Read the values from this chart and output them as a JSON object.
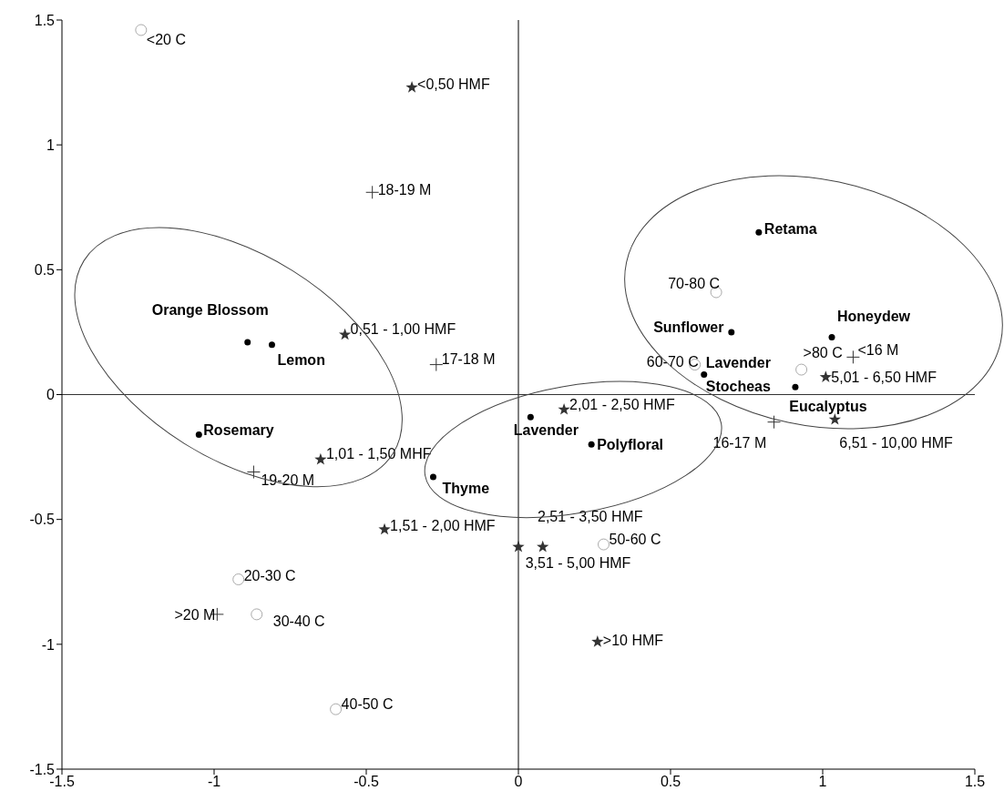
{
  "chart_data": {
    "type": "scatter",
    "xlim": [
      -1.5,
      1.5
    ],
    "xticks": [
      -1.5,
      -1,
      -0.5,
      0,
      0.5,
      1,
      1.5
    ],
    "ylim": [
      -1.5,
      1.5
    ],
    "yticks": [
      -1.5,
      -1,
      -0.5,
      0,
      0.5,
      1,
      1.5
    ],
    "ref_lines": [
      {
        "axis": "x",
        "value": 0,
        "color": "#000000"
      },
      {
        "axis": "y",
        "value": 0,
        "color": "#333333"
      }
    ],
    "series": [
      {
        "marker": "circle",
        "color": "#000000",
        "x": [
          -0.89,
          -0.81,
          -1.05,
          -0.28,
          0.04,
          0.24,
          0.79,
          0.7,
          1.03,
          0.61,
          0.91
        ],
        "values": [
          0.21,
          0.2,
          -0.16,
          -0.33,
          -0.09,
          -0.2,
          0.65,
          0.25,
          0.23,
          0.08,
          0.03
        ],
        "value_labels": [
          "Orange Blossom",
          "Lemon",
          "Rosemary",
          "Thyme",
          "Lavender",
          "Polyfloral",
          "Retama",
          "Sunflower",
          "Honeydew",
          "Lavender Stocheas",
          "Eucalyptus"
        ]
      },
      {
        "marker": "circle",
        "color": "#aaaaaa",
        "x": [
          -1.24,
          -0.92,
          -0.86,
          -0.6,
          0.28,
          0.58,
          0.65,
          0.93
        ],
        "values": [
          1.46,
          -0.74,
          -0.88,
          -1.26,
          -0.6,
          0.12,
          0.41,
          0.1
        ],
        "value_labels": [
          "<20 C",
          "20-30 C",
          "30-40 C",
          "40-50 C",
          "50-60 C",
          "60-70 C",
          "70-80 C",
          ">80 C"
        ]
      },
      {
        "marker": "cross",
        "color": "#333333",
        "x": [
          -0.48,
          -0.27,
          -0.87,
          -0.99,
          0.84,
          1.1
        ],
        "values": [
          0.81,
          0.12,
          -0.31,
          -0.88,
          -0.11,
          0.15
        ],
        "value_labels": [
          "18-19 M",
          "17-18 M",
          "19-20 M",
          ">20 M",
          "16-17 M",
          "<16 M"
        ]
      },
      {
        "marker": "star",
        "color": "#333333",
        "x": [
          -0.35,
          -0.57,
          -0.65,
          -0.44,
          0.15,
          0.0,
          0.08,
          1.01,
          1.04,
          0.26
        ],
        "values": [
          1.23,
          0.24,
          -0.26,
          -0.54,
          -0.06,
          -0.61,
          -0.61,
          0.07,
          -0.1,
          -0.99
        ],
        "value_labels": [
          "<0,50 HMF",
          "0,51 - 1,00 HMF",
          "1,01 - 1,50 MHF",
          "1,51 - 2,00 HMF",
          "2,01 - 2,50 HMF",
          "2,51 - 3,50 HMF",
          "3,51 - 5,00 HMF",
          "5,01 - 6,50 HMF",
          "6,51 - 10,00 HMF",
          ">10 HMF"
        ]
      }
    ]
  }
}
